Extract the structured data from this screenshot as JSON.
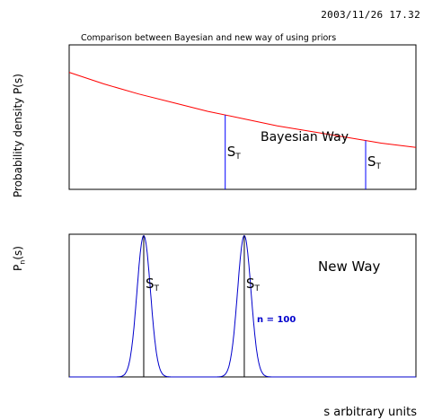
{
  "timestamp": "2003/11/26   17.32",
  "chart_data": [
    {
      "type": "line",
      "title": "Comparison between Bayesian and new way of using priors",
      "ylabel": "Probability density P(s)",
      "xlabel": "",
      "xlim": [
        0,
        1
      ],
      "ylim": [
        0,
        1
      ],
      "series": [
        {
          "x": [
            0.0,
            0.1,
            0.2,
            0.3,
            0.4,
            0.5,
            0.6,
            0.7,
            0.8,
            0.9,
            1.0
          ],
          "values": [
            0.81,
            0.73,
            0.66,
            0.6,
            0.54,
            0.49,
            0.44,
            0.4,
            0.36,
            0.32,
            0.29
          ],
          "color": "#ff0000"
        }
      ],
      "markers": [
        {
          "x": 0.45,
          "label": "S",
          "sub": "T",
          "color": "#0000ff"
        },
        {
          "x": 0.855,
          "label": "S",
          "sub": "T",
          "color": "#0000ff"
        }
      ],
      "annotation": "Bayesian Way",
      "grid": false
    },
    {
      "type": "line",
      "ylabel": "P",
      "ylabel_sub": "n",
      "ylabel_suffix": "(s)",
      "xlabel": "s arbitrary units",
      "xlim": [
        0,
        1
      ],
      "ylim": [
        0,
        1
      ],
      "series": [
        {
          "peaks": [
            0.215,
            0.505
          ],
          "width": 0.0195,
          "height": 0.99,
          "color": "#0000cc"
        }
      ],
      "markers": [
        {
          "x": 0.215,
          "label": "S",
          "sub": "T",
          "color": "#000000"
        },
        {
          "x": 0.505,
          "label": "S",
          "sub": "T",
          "color": "#000000"
        }
      ],
      "annotation": "New Way",
      "series_label": "n = 100",
      "grid": false
    }
  ]
}
